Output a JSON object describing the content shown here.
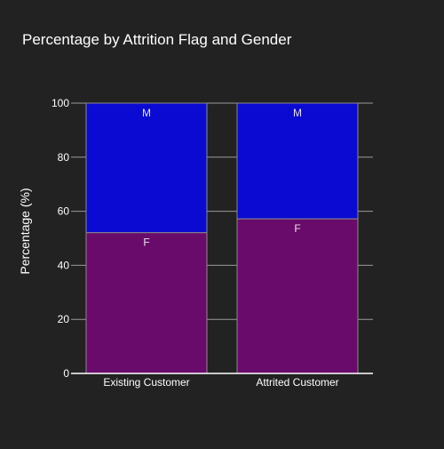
{
  "chart_data": {
    "type": "bar",
    "stacked": true,
    "title": "Percentage by Attrition Flag and Gender",
    "xlabel": "",
    "ylabel": "Percentage (%)",
    "ylim": [
      0,
      100
    ],
    "yticks": [
      0,
      20,
      40,
      60,
      80,
      100
    ],
    "grid": true,
    "categories": [
      "Existing Customer",
      "Attrited Customer"
    ],
    "series": [
      {
        "name": "F",
        "color": "#690b6a",
        "values": [
          52.1,
          57.2
        ]
      },
      {
        "name": "M",
        "color": "#0a0ad2",
        "values": [
          47.9,
          42.8
        ]
      }
    ]
  }
}
